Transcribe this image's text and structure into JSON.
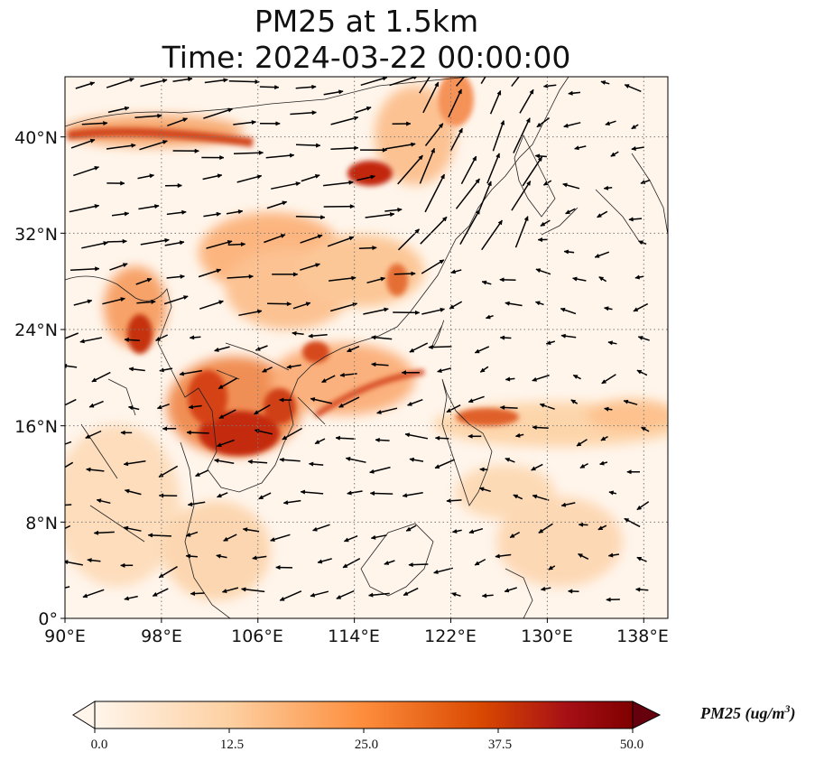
{
  "title": {
    "line1": "PM25 at 1.5km",
    "line2": "Time: 2024-03-22 00:00:00"
  },
  "axes": {
    "lat_ticks": [
      "40°N",
      "32°N",
      "24°N",
      "16°N",
      "8°N",
      "0°"
    ],
    "lon_ticks": [
      "90°E",
      "98°E",
      "106°E",
      "114°E",
      "122°E",
      "130°E",
      "138°E"
    ],
    "lat_range": [
      0,
      45
    ],
    "lon_range": [
      90,
      140
    ],
    "gridlines": "dotted"
  },
  "colorbar": {
    "label_main": "PM25 (ug/m",
    "label_exp": "3",
    "label_close": ")",
    "ticks": [
      "0.0",
      "12.5",
      "25.0",
      "37.5",
      "50.0"
    ],
    "range": [
      0,
      50
    ],
    "extend": "both",
    "colormap": [
      "#fff5eb",
      "#fdd0a2",
      "#fd8d3c",
      "#d94801",
      "#a50f15",
      "#67000d"
    ]
  },
  "colors": {
    "background": "#fff5eb",
    "coastline": "#222222",
    "arrows": "#000000",
    "grid": "#7a7a7a"
  }
}
